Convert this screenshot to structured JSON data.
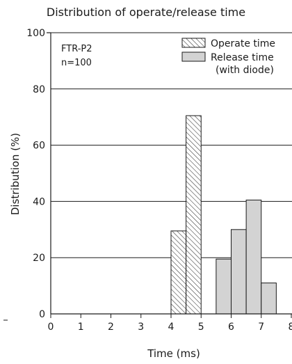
{
  "chart_data": {
    "type": "bar",
    "title": "Distribution of operate/release time",
    "xlabel": "Time (ms)",
    "ylabel": "Distribution (%)",
    "xlim": [
      0,
      8
    ],
    "ylim": [
      0,
      100
    ],
    "x_ticks": [
      "0",
      "1",
      "2",
      "3",
      "4",
      "5",
      "6",
      "7",
      "8"
    ],
    "y_ticks": [
      "0",
      "20",
      "40",
      "60",
      "80",
      "100"
    ],
    "grid": "horizontal",
    "legend_position": "top-right",
    "annotation": [
      "FTR-P2",
      "n=100"
    ],
    "series": [
      {
        "name": "Operate time",
        "style": "hatched",
        "color": "#555555",
        "bins": [
          {
            "x0": 4.0,
            "x1": 4.5,
            "value": 29.5
          },
          {
            "x0": 4.5,
            "x1": 5.0,
            "value": 70.5
          }
        ]
      },
      {
        "name": "Release time",
        "name_line2": "(with diode)",
        "style": "solid",
        "color": "#d3d3d3",
        "bins": [
          {
            "x0": 5.5,
            "x1": 6.0,
            "value": 19.5
          },
          {
            "x0": 6.0,
            "x1": 6.5,
            "value": 30.0
          },
          {
            "x0": 6.5,
            "x1": 7.0,
            "value": 40.5
          },
          {
            "x0": 7.0,
            "x1": 7.5,
            "value": 11.0
          }
        ]
      }
    ]
  }
}
